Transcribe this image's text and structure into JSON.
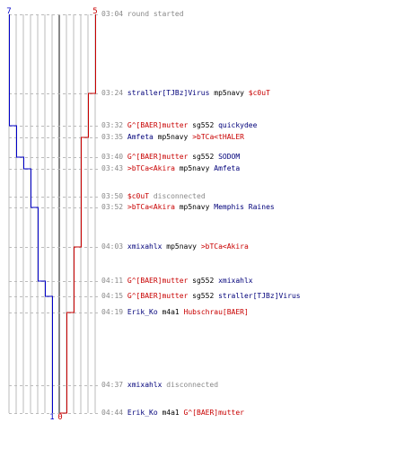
{
  "colors": {
    "blue_team": "#0000c8",
    "red_team": "#c80000",
    "grid": "#bbbbbb",
    "time": "#888888"
  },
  "chart_data": {
    "type": "line",
    "title": "",
    "series": [
      {
        "team": "blue",
        "start_label": "7",
        "end_label": "1",
        "values": [
          7,
          7,
          7,
          7,
          6,
          6,
          5,
          5,
          4,
          4,
          4,
          3,
          2,
          1,
          1,
          1
        ]
      },
      {
        "team": "red",
        "start_label": "5",
        "end_label": "0",
        "values": [
          5,
          5,
          4,
          4,
          3,
          3,
          3,
          3,
          3,
          3,
          2,
          2,
          1,
          0,
          0,
          0
        ]
      }
    ],
    "xlabel": "",
    "ylabel": ""
  },
  "events": [
    {
      "time": "03:04",
      "parts": [
        {
          "text": "round started",
          "color": "w"
        }
      ]
    },
    {
      "time": "03:24",
      "parts": [
        {
          "text": "straller[TJBz]Virus",
          "color": "b"
        },
        {
          "text": " mp5navy ",
          "color": "g"
        },
        {
          "text": "$c0uT",
          "color": "r"
        }
      ]
    },
    {
      "time": "03:32",
      "parts": [
        {
          "text": "G^[BAER]mutter",
          "color": "r"
        },
        {
          "text": " sg552 ",
          "color": "g"
        },
        {
          "text": "quickydee",
          "color": "b"
        }
      ]
    },
    {
      "time": "03:35",
      "parts": [
        {
          "text": "Amfeta",
          "color": "b"
        },
        {
          "text": " mp5navy ",
          "color": "g"
        },
        {
          "text": ">bTCa<tHALER",
          "color": "r"
        }
      ]
    },
    {
      "time": "03:40",
      "parts": [
        {
          "text": "G^[BAER]mutter",
          "color": "r"
        },
        {
          "text": " sg552 ",
          "color": "g"
        },
        {
          "text": "SODOM",
          "color": "b"
        }
      ]
    },
    {
      "time": "03:43",
      "parts": [
        {
          "text": ">bTCa<Akira",
          "color": "r"
        },
        {
          "text": " mp5navy ",
          "color": "g"
        },
        {
          "text": "Amfeta",
          "color": "b"
        }
      ]
    },
    {
      "time": "03:50",
      "parts": [
        {
          "text": "$c0uT",
          "color": "r"
        },
        {
          "text": " disconnected",
          "color": "w"
        }
      ]
    },
    {
      "time": "03:52",
      "parts": [
        {
          "text": ">bTCa<Akira",
          "color": "r"
        },
        {
          "text": " mp5navy ",
          "color": "g"
        },
        {
          "text": "Memphis Raines",
          "color": "b"
        }
      ]
    },
    {
      "time": "04:03",
      "parts": [
        {
          "text": "xmixahlx",
          "color": "b"
        },
        {
          "text": " mp5navy ",
          "color": "g"
        },
        {
          "text": ">bTCa<Akira",
          "color": "r"
        }
      ]
    },
    {
      "time": "04:11",
      "parts": [
        {
          "text": "G^[BAER]mutter",
          "color": "r"
        },
        {
          "text": " sg552 ",
          "color": "g"
        },
        {
          "text": "xmixahlx",
          "color": "b"
        }
      ]
    },
    {
      "time": "04:15",
      "parts": [
        {
          "text": "G^[BAER]mutter",
          "color": "r"
        },
        {
          "text": " sg552 ",
          "color": "g"
        },
        {
          "text": "straller[TJBz]Virus",
          "color": "b"
        }
      ]
    },
    {
      "time": "04:19",
      "parts": [
        {
          "text": "Erik_Ko",
          "color": "b"
        },
        {
          "text": " m4a1 ",
          "color": "g"
        },
        {
          "text": "Hubschrau[BAER]",
          "color": "r"
        }
      ]
    },
    {
      "time": "04:37",
      "parts": [
        {
          "text": "xmixahlx",
          "color": "b"
        },
        {
          "text": " disconnected",
          "color": "w"
        }
      ]
    },
    {
      "time": "04:44",
      "parts": [
        {
          "text": "Erik_Ko",
          "color": "b"
        },
        {
          "text": " m4a1 ",
          "color": "g"
        },
        {
          "text": "G^[BAER]mutter",
          "color": "r"
        }
      ]
    }
  ]
}
